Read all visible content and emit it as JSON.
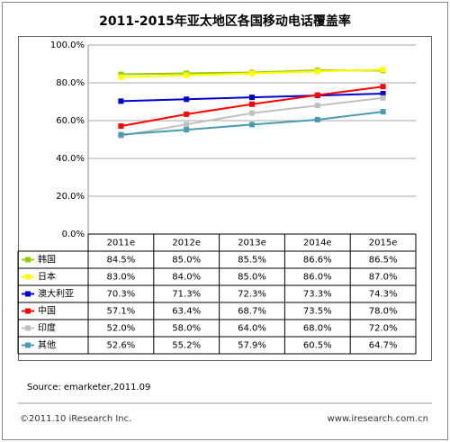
{
  "chart_data": {
    "type": "line",
    "title": "2011-2015年亚太地区各国移动电话覆盖率",
    "categories": [
      "2011e",
      "2012e",
      "2013e",
      "2014e",
      "2015e"
    ],
    "series": [
      {
        "name": "韩国",
        "color": "#99cc00",
        "values": [
          84.5,
          85.0,
          85.5,
          86.6,
          86.5
        ],
        "value_labels": [
          "84.5%",
          "85.0%",
          "85.5%",
          "86.6%",
          "86.5%"
        ]
      },
      {
        "name": "日本",
        "color": "#ffff00",
        "values": [
          83.0,
          84.0,
          85.0,
          86.0,
          87.0
        ],
        "value_labels": [
          "83.0%",
          "84.0%",
          "85.0%",
          "86.0%",
          "87.0%"
        ]
      },
      {
        "name": "澳大利亚",
        "color": "#0000cc",
        "values": [
          70.3,
          71.3,
          72.3,
          73.3,
          74.3
        ],
        "value_labels": [
          "70.3%",
          "71.3%",
          "72.3%",
          "73.3%",
          "74.3%"
        ]
      },
      {
        "name": "中国",
        "color": "#ff0000",
        "values": [
          57.1,
          63.4,
          68.7,
          73.5,
          78.0
        ],
        "value_labels": [
          "57.1%",
          "63.4%",
          "68.7%",
          "73.5%",
          "78.0%"
        ]
      },
      {
        "name": "印度",
        "color": "#c0c0c0",
        "values": [
          52.0,
          58.0,
          64.0,
          68.0,
          72.0
        ],
        "value_labels": [
          "52.0%",
          "58.0%",
          "64.0%",
          "68.0%",
          "72.0%"
        ]
      },
      {
        "name": "其他",
        "color": "#4a9ab0",
        "values": [
          52.6,
          55.2,
          57.9,
          60.5,
          64.7
        ],
        "value_labels": [
          "52.6%",
          "55.2%",
          "57.9%",
          "60.5%",
          "64.7%"
        ]
      }
    ],
    "ylim": [
      0,
      100
    ],
    "yticks": [
      {
        "value": 0,
        "label": "0.0%"
      },
      {
        "value": 20,
        "label": "20.0%"
      },
      {
        "value": 40,
        "label": "40.0%"
      },
      {
        "value": 60,
        "label": "60.0%"
      },
      {
        "value": 80,
        "label": "80.0%"
      },
      {
        "value": 100,
        "label": "100.0%"
      }
    ],
    "grid": true,
    "source": "Source:  emarketer,2011.09",
    "copyright": "©2011.10 iResearch Inc.",
    "website": "www.iresearch.com.cn"
  }
}
